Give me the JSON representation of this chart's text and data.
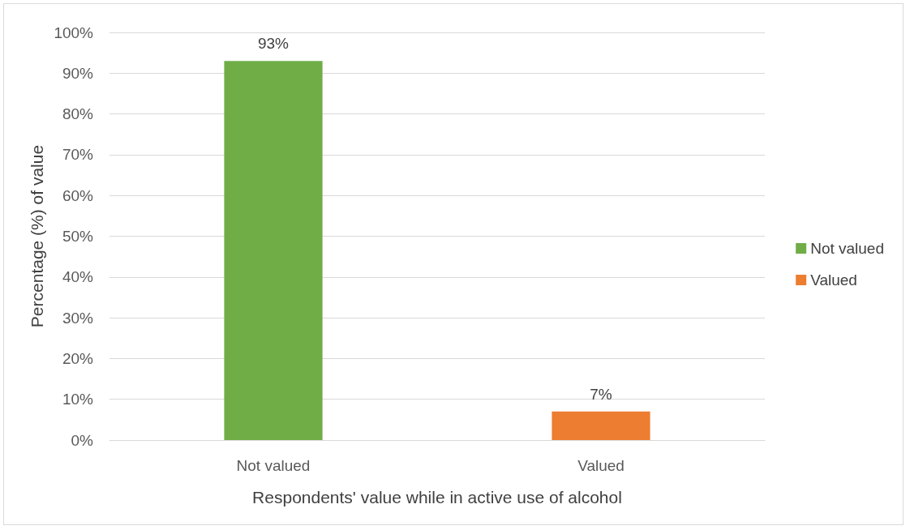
{
  "chart_data": {
    "type": "bar",
    "xlabel": "Respondents' value while in active use of alcohol",
    "ylabel": "Percentage (%) of value",
    "categories": [
      "Not valued",
      "Valued"
    ],
    "series": [
      {
        "name": "Not valued",
        "color": "#70ad47",
        "values": [
          93,
          null
        ],
        "value_labels": [
          "93%",
          null
        ]
      },
      {
        "name": "Valued",
        "color": "#ed7d31",
        "values": [
          null,
          7
        ],
        "value_labels": [
          null,
          "7%"
        ]
      }
    ],
    "ylim": [
      0,
      100
    ],
    "yticks": [
      {
        "value": 0,
        "label": "0%"
      },
      {
        "value": 10,
        "label": "10%"
      },
      {
        "value": 20,
        "label": "20%"
      },
      {
        "value": 30,
        "label": "30%"
      },
      {
        "value": 40,
        "label": "40%"
      },
      {
        "value": 50,
        "label": "50%"
      },
      {
        "value": 60,
        "label": "60%"
      },
      {
        "value": 70,
        "label": "70%"
      },
      {
        "value": 80,
        "label": "80%"
      },
      {
        "value": 90,
        "label": "90%"
      },
      {
        "value": 100,
        "label": "100%"
      }
    ],
    "grid": "y",
    "legend": "right"
  }
}
